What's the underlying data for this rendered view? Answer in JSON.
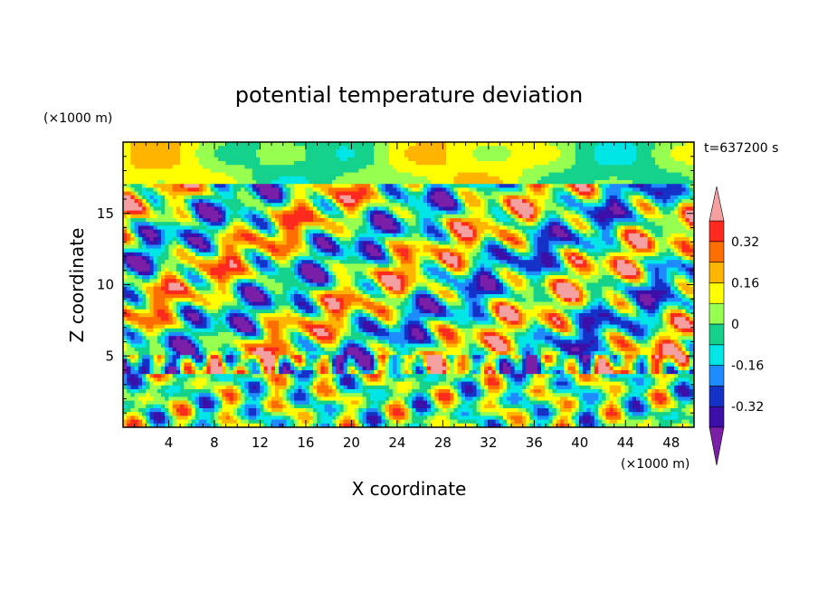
{
  "chart_data": {
    "type": "heatmap",
    "title": "potential temperature deviation",
    "xlabel": "X coordinate",
    "ylabel": "Z coordinate",
    "x_unit": "(×1000 m)",
    "y_unit": "(×1000 m)",
    "time_label": "t=637200 s",
    "xlim": [
      0,
      50
    ],
    "ylim": [
      0,
      20
    ],
    "x_ticks": [
      4,
      8,
      12,
      16,
      20,
      24,
      28,
      32,
      36,
      40,
      44,
      48
    ],
    "y_ticks": [
      5,
      10,
      15
    ],
    "colorbar": {
      "levels": [
        -0.4,
        -0.32,
        -0.24,
        -0.16,
        -0.08,
        0,
        0.08,
        0.16,
        0.24,
        0.32,
        0.4
      ],
      "labels": [
        "0.32",
        "0.16",
        "0",
        "-0.16",
        "-0.32"
      ],
      "label_values": [
        0.32,
        0.16,
        0,
        -0.16,
        -0.32
      ],
      "colors": [
        "#7a1fa8",
        "#3c0fa8",
        "#1432c8",
        "#1e8cff",
        "#00e6e6",
        "#14d28c",
        "#96ff50",
        "#ffff00",
        "#ffb400",
        "#ff6e00",
        "#ff2a1e",
        "#f5a0a0"
      ],
      "extend": "both"
    }
  }
}
